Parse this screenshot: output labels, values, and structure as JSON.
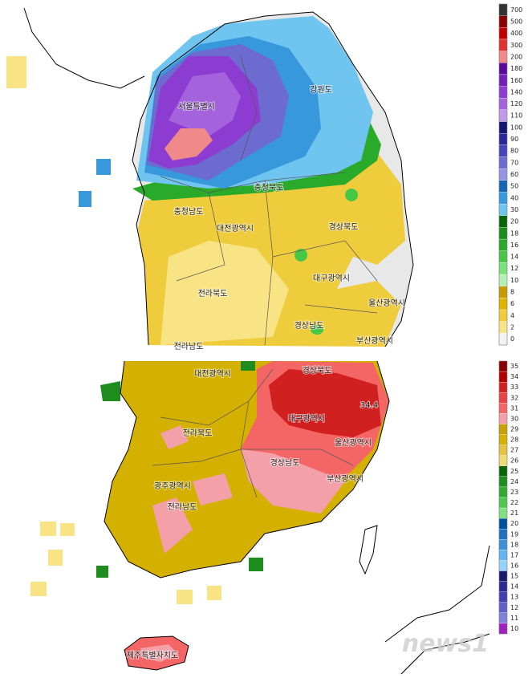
{
  "top_map": {
    "labels": [
      "강원도",
      "서울특별시",
      "충청북도",
      "충청남도",
      "대전광역시",
      "경상북도",
      "대구광역시",
      "전라북도",
      "울산광역시",
      "경상남도",
      "부산광역시",
      "전라남도"
    ],
    "legend": {
      "ticks": [
        700,
        500,
        400,
        300,
        200,
        180,
        160,
        140,
        120,
        110,
        100,
        90,
        80,
        70,
        60,
        50,
        40,
        30,
        20,
        18,
        16,
        14,
        12,
        10,
        8,
        6,
        4,
        2,
        0
      ],
      "colors": [
        "#333333",
        "#8b0000",
        "#c00000",
        "#e03030",
        "#f08a8a",
        "#5a0a9a",
        "#7420b8",
        "#8c3cd0",
        "#a462dc",
        "#c09ae8",
        "#16166e",
        "#28289a",
        "#4646bc",
        "#6c6cd0",
        "#9494e0",
        "#1466b4",
        "#3898dc",
        "#70c4f0",
        "#0a640a",
        "#1a8c1a",
        "#2aaa2a",
        "#46c846",
        "#7ae07a",
        "#b4f0b4",
        "#c89c00",
        "#deb400",
        "#efcc3c",
        "#f8e484",
        "#f2f2f2"
      ]
    }
  },
  "bottom_map": {
    "labels": [
      "대전광역시",
      "경상북도",
      "대구광역시",
      "전라북도",
      "울산광역시",
      "경상남도",
      "광주광역시",
      "부산광역시",
      "전라남도",
      "제주특별자치도"
    ],
    "value_label": "34.4",
    "legend": {
      "ticks": [
        35,
        34,
        33,
        32,
        31,
        30,
        29,
        28,
        27,
        26,
        25,
        24,
        23,
        22,
        21,
        20,
        19,
        18,
        17,
        16,
        15,
        14,
        13,
        12,
        11,
        10
      ],
      "colors": [
        "#8b0000",
        "#b00000",
        "#d02020",
        "#e84444",
        "#f46666",
        "#f4a0a8",
        "#c8a000",
        "#d4b000",
        "#e2c440",
        "#f0da74",
        "#0a640a",
        "#1e8c1e",
        "#32aa32",
        "#50c850",
        "#82e082",
        "#0050a0",
        "#2070c0",
        "#3c90d8",
        "#64b4f0",
        "#96d2fa",
        "#1a1a6e",
        "#2a2a90",
        "#4040b0",
        "#6060c8",
        "#8080d8",
        "#a020c0"
      ]
    }
  },
  "watermark": "news1"
}
